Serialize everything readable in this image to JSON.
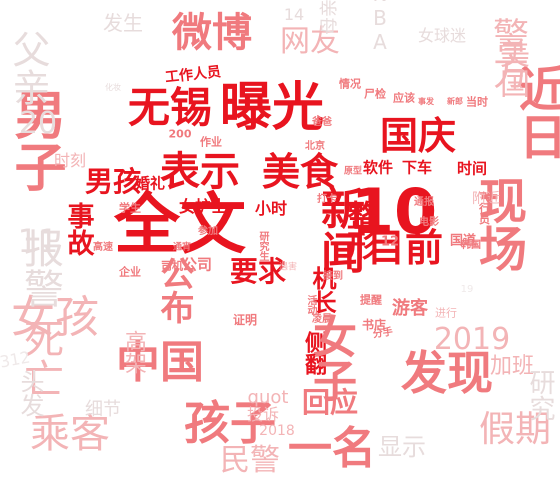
{
  "palette": {
    "strong": "#e8141f",
    "mid": "#f07a7e",
    "soft": "#f3b4b6",
    "faint": "#e7dcdc",
    "pale": "#efe9e9"
  },
  "words": [
    {
      "text": "全文",
      "tone": "strong"
    },
    {
      "text": "曝光",
      "tone": "strong"
    },
    {
      "text": "无锡",
      "tone": "strong"
    },
    {
      "text": "表示",
      "tone": "strong"
    },
    {
      "text": "美食",
      "tone": "strong"
    },
    {
      "text": "男孩",
      "tone": "strong"
    },
    {
      "text": "国庆",
      "tone": "strong"
    },
    {
      "text": "新闻",
      "tone": "strong"
    },
    {
      "text": "目前",
      "tone": "strong"
    },
    {
      "text": "10",
      "tone": "strong"
    },
    {
      "text": "要求",
      "tone": "strong"
    },
    {
      "text": "事故",
      "tone": "strong"
    },
    {
      "text": "整形",
      "tone": "strong"
    },
    {
      "text": "机长",
      "tone": "strong"
    },
    {
      "text": "侧翻",
      "tone": "strong"
    },
    {
      "text": "软件",
      "tone": "strong"
    },
    {
      "text": "下车",
      "tone": "strong"
    },
    {
      "text": "时间",
      "tone": "strong"
    },
    {
      "text": "女护士",
      "tone": "strong"
    },
    {
      "text": "婚礼",
      "tone": "strong"
    },
    {
      "text": "小时",
      "tone": "strong"
    },
    {
      "text": "工作人员",
      "tone": "strong"
    },
    {
      "text": "公布",
      "tone": "mid"
    },
    {
      "text": "微博",
      "tone": "mid"
    },
    {
      "text": "近日",
      "tone": "mid"
    },
    {
      "text": "男子",
      "tone": "mid"
    },
    {
      "text": "现场",
      "tone": "mid"
    },
    {
      "text": "中国",
      "tone": "mid"
    },
    {
      "text": "女子",
      "tone": "mid"
    },
    {
      "text": "发现",
      "tone": "mid"
    },
    {
      "text": "一名",
      "tone": "mid"
    },
    {
      "text": "孩子",
      "tone": "mid"
    },
    {
      "text": "回应",
      "tone": "mid"
    },
    {
      "text": "网友",
      "tone": "soft"
    },
    {
      "text": "游客",
      "tone": "mid"
    },
    {
      "text": "公司",
      "tone": "mid"
    },
    {
      "text": "乘客",
      "tone": "soft"
    },
    {
      "text": "女孩",
      "tone": "soft"
    },
    {
      "text": "死亡",
      "tone": "soft"
    },
    {
      "text": "假期",
      "tone": "soft"
    },
    {
      "text": "民警",
      "tone": "soft"
    },
    {
      "text": "警方",
      "tone": "soft"
    },
    {
      "text": "美国",
      "tone": "soft"
    },
    {
      "text": "2019",
      "tone": "soft"
    },
    {
      "text": "投诉",
      "tone": "soft"
    },
    {
      "text": "高架",
      "tone": "soft"
    },
    {
      "text": "quot",
      "tone": "soft"
    },
    {
      "text": "2018",
      "tone": "soft"
    },
    {
      "text": "书店",
      "tone": "mid"
    },
    {
      "text": "附近",
      "tone": "soft"
    },
    {
      "text": "学生",
      "tone": "mid"
    },
    {
      "text": "作业",
      "tone": "mid"
    },
    {
      "text": "200",
      "tone": "mid"
    },
    {
      "text": "情况",
      "tone": "mid"
    },
    {
      "text": "尸检",
      "tone": "mid"
    },
    {
      "text": "应该",
      "tone": "mid"
    },
    {
      "text": "当时",
      "tone": "mid"
    },
    {
      "text": "国道",
      "tone": "mid"
    },
    {
      "text": "进行",
      "tone": "soft"
    },
    {
      "text": "12",
      "tone": "mid"
    },
    {
      "text": "证明",
      "tone": "mid"
    },
    {
      "text": "提醒",
      "tone": "mid"
    },
    {
      "text": "分手",
      "tone": "mid"
    },
    {
      "text": "爸爸",
      "tone": "mid"
    },
    {
      "text": "北京",
      "tone": "mid"
    },
    {
      "text": "打卡",
      "tone": "mid"
    },
    {
      "text": "司机",
      "tone": "mid"
    },
    {
      "text": "企业",
      "tone": "mid"
    },
    {
      "text": "参加",
      "tone": "mid"
    },
    {
      "text": "高速",
      "tone": "mid"
    },
    {
      "text": "通宵",
      "tone": "mid"
    },
    {
      "text": "加班",
      "tone": "soft"
    },
    {
      "text": "时刻",
      "tone": "soft"
    },
    {
      "text": "父亲",
      "tone": "faint"
    },
    {
      "text": "发生",
      "tone": "faint"
    },
    {
      "text": "NBA",
      "tone": "faint"
    },
    {
      "text": "14",
      "tone": "faint"
    },
    {
      "text": "母亲",
      "tone": "faint"
    },
    {
      "text": "女球迷",
      "tone": "faint"
    },
    {
      "text": "报警",
      "tone": "faint"
    },
    {
      "text": "细节",
      "tone": "faint"
    },
    {
      "text": "显示",
      "tone": "faint"
    },
    {
      "text": "研究",
      "tone": "faint"
    },
    {
      "text": "头发",
      "tone": "faint"
    },
    {
      "text": "11",
      "tone": "faint"
    },
    {
      "text": "20",
      "tone": "faint"
    },
    {
      "text": "312",
      "tone": "pale"
    },
    {
      "text": "19",
      "tone": "pale"
    },
    {
      "text": "通报",
      "tone": "mid"
    },
    {
      "text": "电影",
      "tone": "mid"
    },
    {
      "text": "飞行员",
      "tone": "mid"
    },
    {
      "text": "原型",
      "tone": "mid"
    },
    {
      "text": "研究生",
      "tone": "mid"
    },
    {
      "text": "接到",
      "tone": "mid"
    },
    {
      "text": "活动",
      "tone": "mid"
    },
    {
      "text": "凌晨",
      "tone": "mid"
    },
    {
      "text": "遇害",
      "tone": "soft"
    },
    {
      "text": "事发",
      "tone": "mid"
    },
    {
      "text": "新郎",
      "tone": "mid"
    },
    {
      "text": "化妆",
      "tone": "faint"
    },
    {
      "text": "韩国",
      "tone": "mid"
    }
  ]
}
